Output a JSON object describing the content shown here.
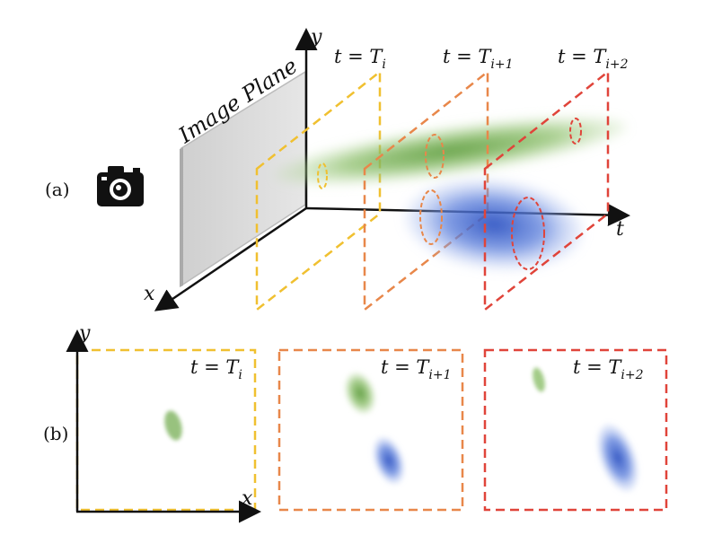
{
  "part_labels": {
    "a": "(a)",
    "b": "(b)"
  },
  "image_plane_label": "Image Plane",
  "axes": {
    "x": "x",
    "y": "y",
    "t": "t"
  },
  "time_slices": [
    {
      "name": "t = T",
      "subscript": "i",
      "color": "#f0c030"
    },
    {
      "name": "t = T",
      "subscript": "i+1",
      "color": "#e8874a"
    },
    {
      "name": "t = T",
      "subscript": "i+2",
      "color": "#e0443a"
    }
  ],
  "blob_colors": {
    "green": "#6aa84f",
    "blue": "#3c5fcf"
  },
  "icons": [
    "camera-icon"
  ]
}
